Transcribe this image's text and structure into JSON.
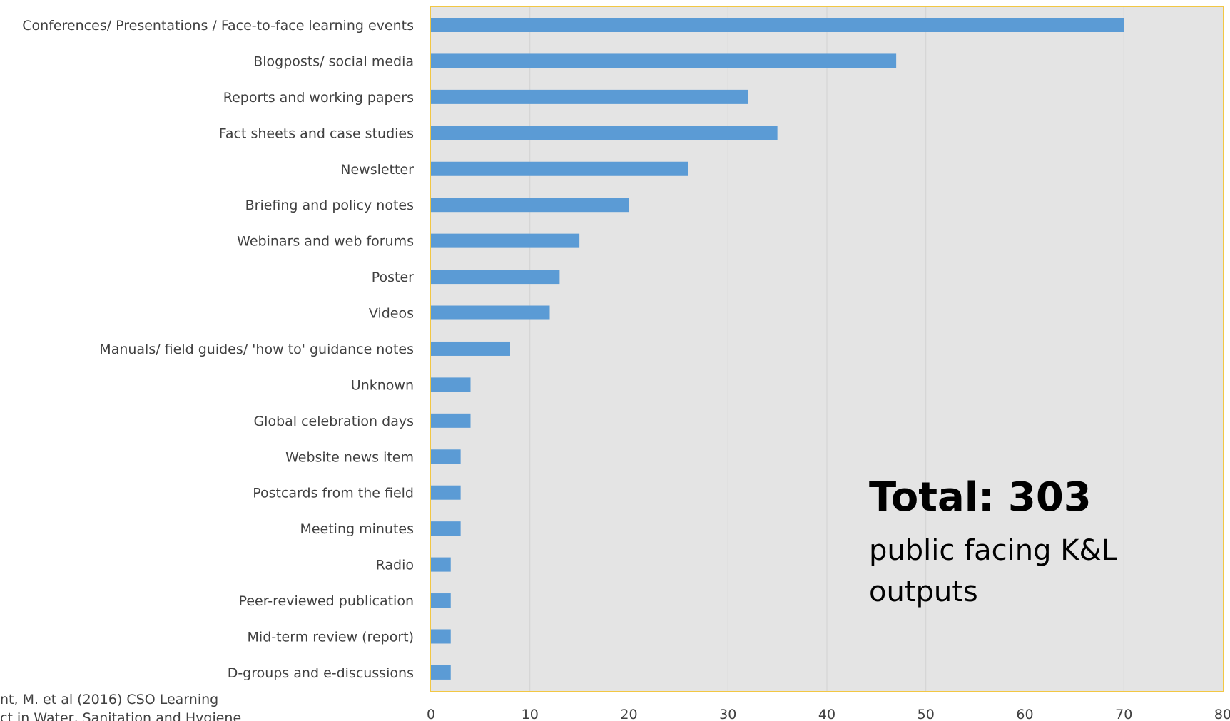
{
  "chart_data": {
    "type": "bar",
    "orientation": "horizontal",
    "categories": [
      "Conferences/ Presentations / Face-to-face learning events",
      "Blogposts/ social media",
      "Reports and working papers",
      "Fact sheets and case studies",
      "Newsletter",
      "Briefing and policy notes",
      "Webinars and web forums",
      "Poster",
      "Videos",
      "Manuals/ field guides/ 'how to' guidance notes",
      "Unknown",
      "Global celebration days",
      "Website news item",
      "Postcards from the field",
      "Meeting minutes",
      "Radio",
      "Peer-reviewed publication",
      "Mid-term review (report)",
      "D-groups and e-discussions"
    ],
    "values": [
      70,
      47,
      32,
      35,
      26,
      20,
      15,
      13,
      12,
      8,
      4,
      4,
      3,
      3,
      3,
      2,
      2,
      2,
      2
    ],
    "xlim": [
      0,
      80
    ],
    "xticks": [
      "0",
      "10",
      "20",
      "30",
      "40",
      "50",
      "60",
      "70",
      "80"
    ],
    "grid": true,
    "colors": {
      "bar": "#5b9bd5",
      "plot_background": "#e4e4e4",
      "plot_border": "#f2c744",
      "gridline": "#d2d2d2"
    }
  },
  "annotation": {
    "total": "Total: 303",
    "description": "public facing K&L outputs"
  },
  "citation": {
    "line1": "nt, M. et al (2016) CSO Learning",
    "line2": "ct in Water, Sanitation and Hygiene"
  }
}
